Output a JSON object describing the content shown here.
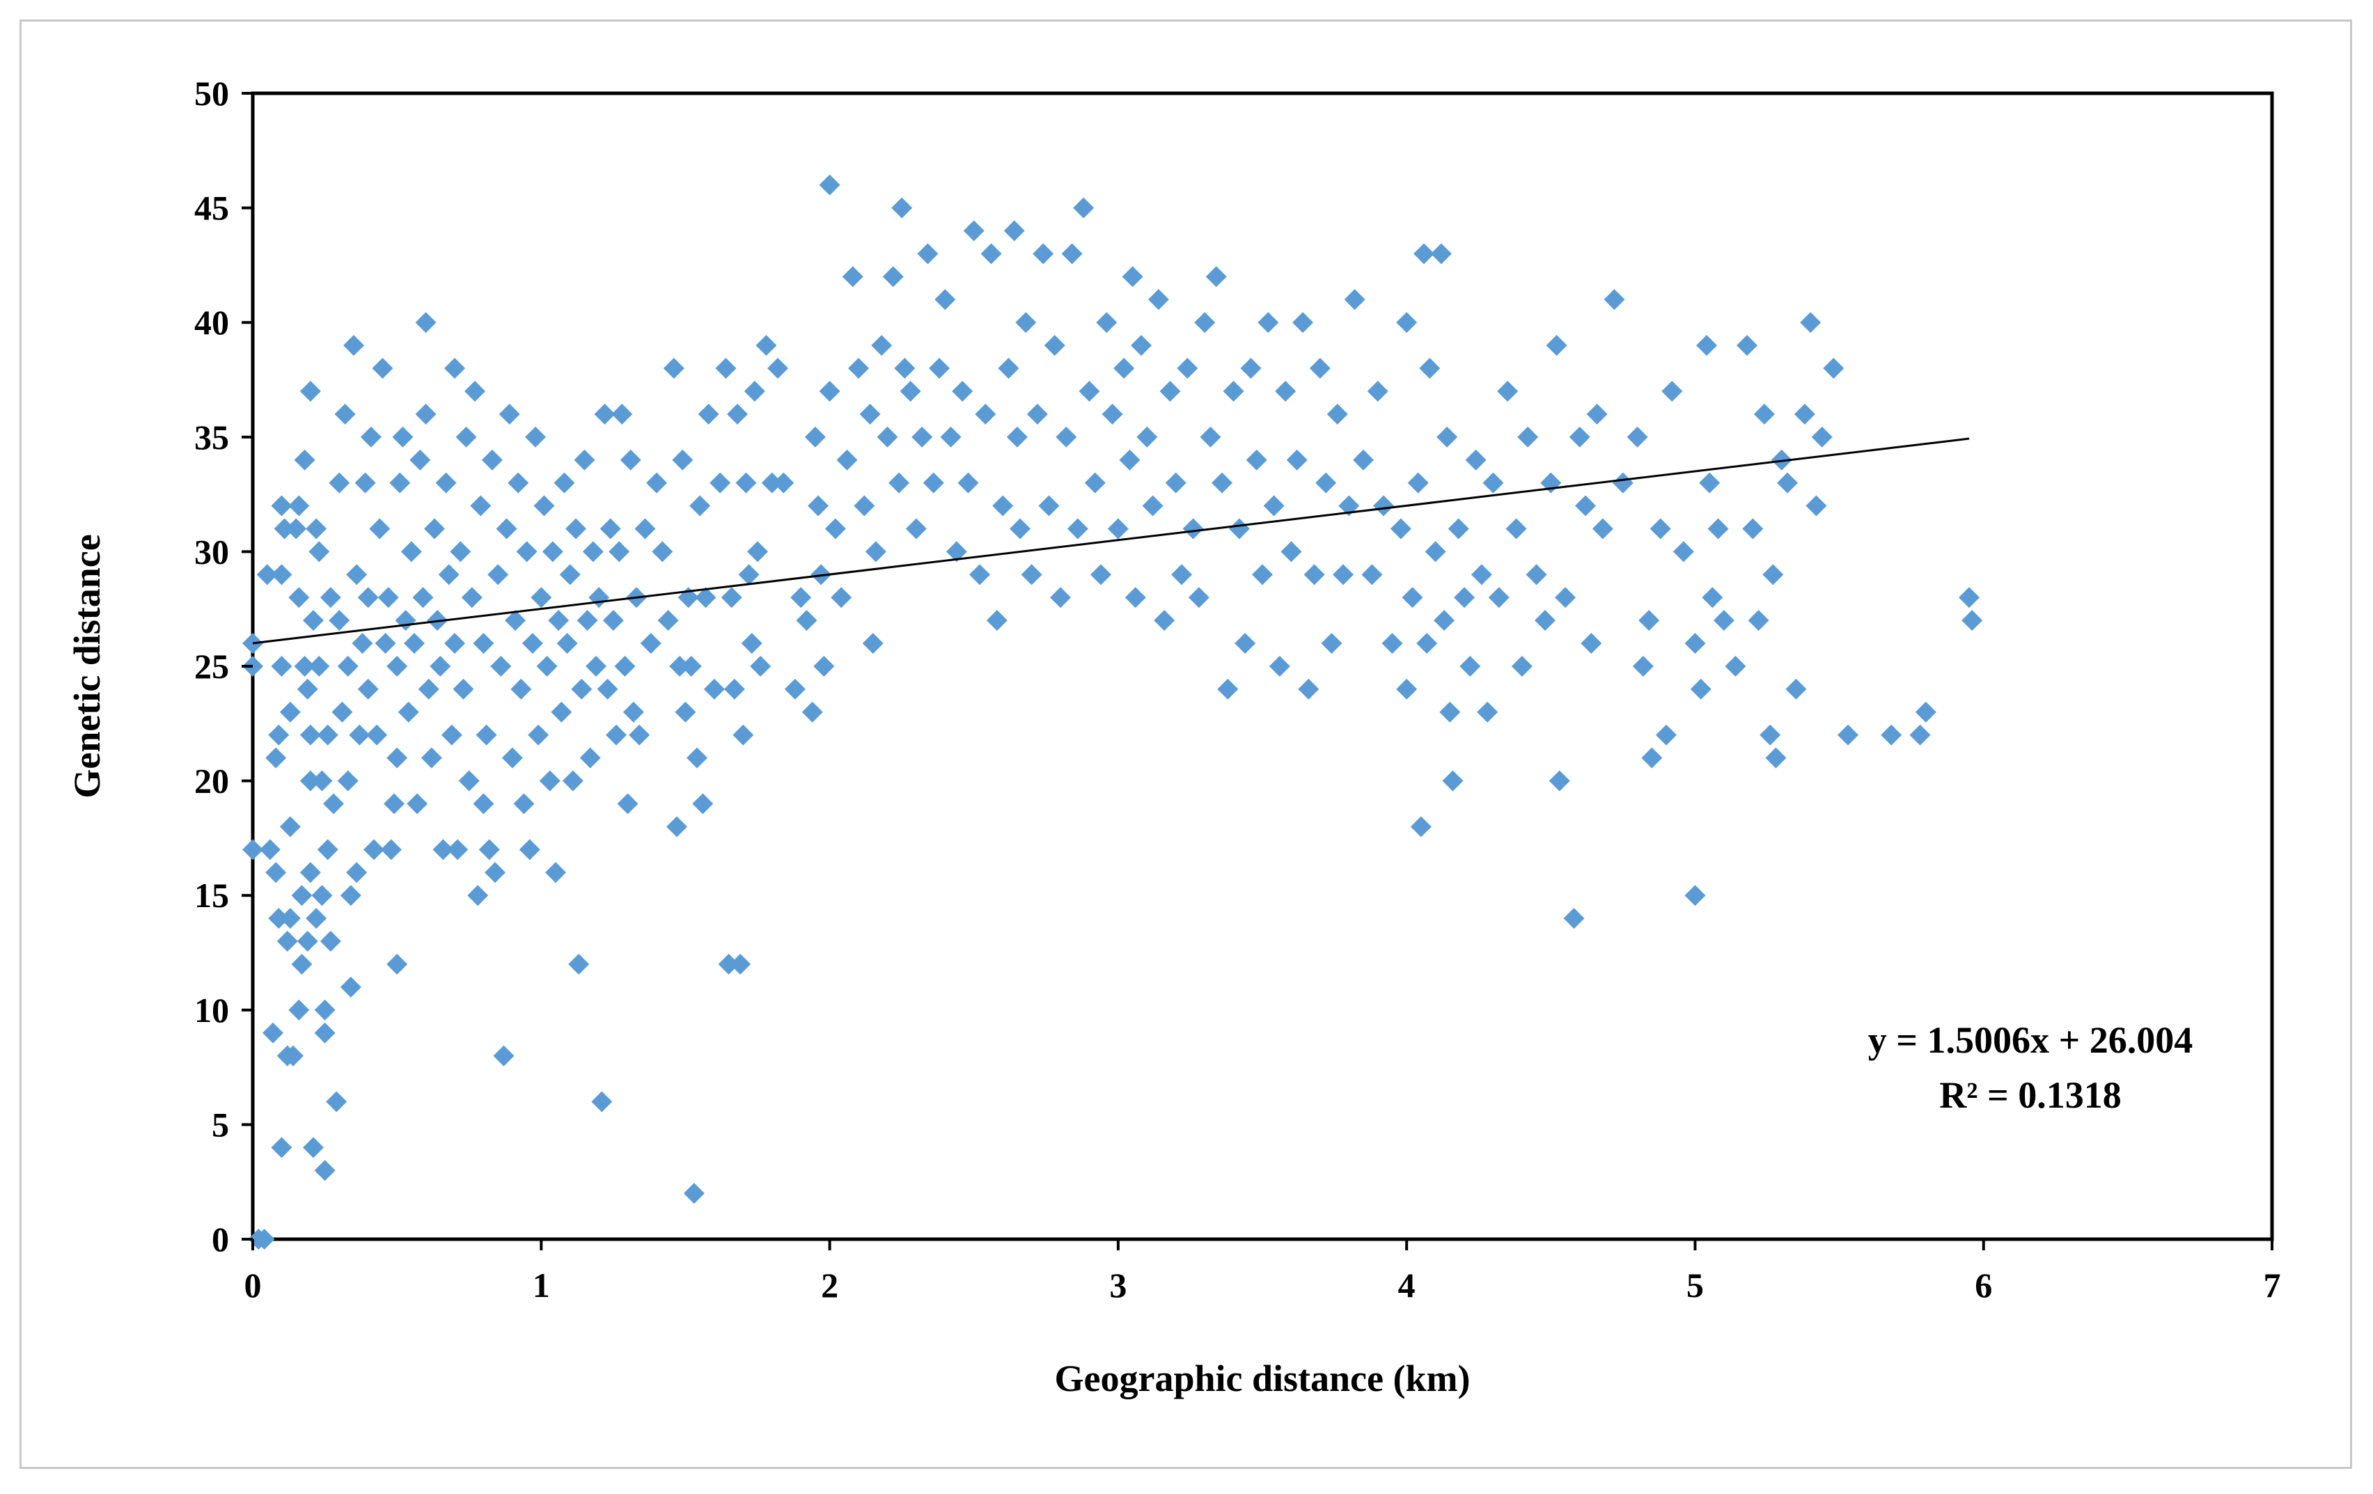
{
  "chart_data": {
    "type": "scatter",
    "xlabel": "Geographic distance (km)",
    "ylabel": "Genetic distance",
    "xlim": [
      0,
      7
    ],
    "ylim": [
      0,
      50
    ],
    "x_ticks": [
      "0",
      "1",
      "2",
      "3",
      "4",
      "5",
      "6",
      "7"
    ],
    "y_ticks": [
      "0",
      "5",
      "10",
      "15",
      "20",
      "25",
      "30",
      "35",
      "40",
      "45",
      "50"
    ],
    "grid": false,
    "legend": "none",
    "marker": "diamond",
    "marker_color": "#5b9bd5",
    "trendline": {
      "slope": 1.5006,
      "intercept": 26.004,
      "x_range": [
        0,
        5.95
      ],
      "color": "#000000"
    },
    "annotations": {
      "equation": "y = 1.5006x + 26.004",
      "r_squared": "R² = 0.1318"
    },
    "points": [
      [
        0.0,
        25
      ],
      [
        0.0,
        26
      ],
      [
        0.0,
        17
      ],
      [
        0.02,
        0
      ],
      [
        0.04,
        0
      ],
      [
        0.05,
        29
      ],
      [
        0.06,
        17
      ],
      [
        0.07,
        9
      ],
      [
        0.08,
        16
      ],
      [
        0.08,
        21
      ],
      [
        0.09,
        14
      ],
      [
        0.09,
        22
      ],
      [
        0.1,
        4
      ],
      [
        0.1,
        25
      ],
      [
        0.1,
        29
      ],
      [
        0.1,
        32
      ],
      [
        0.11,
        31
      ],
      [
        0.12,
        13
      ],
      [
        0.12,
        8
      ],
      [
        0.13,
        14
      ],
      [
        0.13,
        18
      ],
      [
        0.13,
        23
      ],
      [
        0.14,
        8
      ],
      [
        0.15,
        31
      ],
      [
        0.16,
        10
      ],
      [
        0.16,
        28
      ],
      [
        0.16,
        32
      ],
      [
        0.17,
        12
      ],
      [
        0.17,
        15
      ],
      [
        0.18,
        25
      ],
      [
        0.18,
        34
      ],
      [
        0.19,
        13
      ],
      [
        0.19,
        24
      ],
      [
        0.2,
        16
      ],
      [
        0.2,
        20
      ],
      [
        0.2,
        22
      ],
      [
        0.2,
        37
      ],
      [
        0.21,
        4
      ],
      [
        0.21,
        27
      ],
      [
        0.22,
        14
      ],
      [
        0.22,
        31
      ],
      [
        0.23,
        25
      ],
      [
        0.23,
        30
      ],
      [
        0.24,
        15
      ],
      [
        0.24,
        20
      ],
      [
        0.25,
        10
      ],
      [
        0.25,
        3
      ],
      [
        0.25,
        9
      ],
      [
        0.26,
        17
      ],
      [
        0.26,
        22
      ],
      [
        0.27,
        13
      ],
      [
        0.27,
        28
      ],
      [
        0.28,
        19
      ],
      [
        0.29,
        6
      ],
      [
        0.3,
        27
      ],
      [
        0.3,
        33
      ],
      [
        0.31,
        23
      ],
      [
        0.32,
        36
      ],
      [
        0.33,
        20
      ],
      [
        0.33,
        25
      ],
      [
        0.34,
        15
      ],
      [
        0.34,
        11
      ],
      [
        0.35,
        39
      ],
      [
        0.36,
        16
      ],
      [
        0.36,
        29
      ],
      [
        0.37,
        22
      ],
      [
        0.38,
        26
      ],
      [
        0.39,
        33
      ],
      [
        0.4,
        24
      ],
      [
        0.4,
        28
      ],
      [
        0.41,
        35
      ],
      [
        0.42,
        17
      ],
      [
        0.43,
        22
      ],
      [
        0.44,
        31
      ],
      [
        0.45,
        38
      ],
      [
        0.46,
        26
      ],
      [
        0.47,
        28
      ],
      [
        0.48,
        17
      ],
      [
        0.49,
        19
      ],
      [
        0.5,
        12
      ],
      [
        0.5,
        21
      ],
      [
        0.5,
        25
      ],
      [
        0.51,
        33
      ],
      [
        0.52,
        35
      ],
      [
        0.53,
        27
      ],
      [
        0.54,
        23
      ],
      [
        0.55,
        30
      ],
      [
        0.56,
        26
      ],
      [
        0.57,
        19
      ],
      [
        0.58,
        34
      ],
      [
        0.59,
        28
      ],
      [
        0.6,
        36
      ],
      [
        0.6,
        40
      ],
      [
        0.61,
        24
      ],
      [
        0.62,
        21
      ],
      [
        0.63,
        31
      ],
      [
        0.64,
        27
      ],
      [
        0.65,
        25
      ],
      [
        0.66,
        17
      ],
      [
        0.67,
        33
      ],
      [
        0.68,
        29
      ],
      [
        0.69,
        22
      ],
      [
        0.7,
        38
      ],
      [
        0.7,
        26
      ],
      [
        0.71,
        17
      ],
      [
        0.72,
        30
      ],
      [
        0.73,
        24
      ],
      [
        0.74,
        35
      ],
      [
        0.75,
        20
      ],
      [
        0.76,
        28
      ],
      [
        0.77,
        37
      ],
      [
        0.78,
        15
      ],
      [
        0.79,
        32
      ],
      [
        0.8,
        19
      ],
      [
        0.8,
        26
      ],
      [
        0.81,
        22
      ],
      [
        0.82,
        17
      ],
      [
        0.83,
        34
      ],
      [
        0.84,
        16
      ],
      [
        0.85,
        29
      ],
      [
        0.86,
        25
      ],
      [
        0.87,
        8
      ],
      [
        0.88,
        31
      ],
      [
        0.89,
        36
      ],
      [
        0.9,
        21
      ],
      [
        0.91,
        27
      ],
      [
        0.92,
        33
      ],
      [
        0.93,
        24
      ],
      [
        0.94,
        19
      ],
      [
        0.95,
        30
      ],
      [
        0.96,
        17
      ],
      [
        0.97,
        26
      ],
      [
        0.98,
        35
      ],
      [
        0.99,
        22
      ],
      [
        1.0,
        28
      ],
      [
        1.01,
        32
      ],
      [
        1.02,
        25
      ],
      [
        1.03,
        20
      ],
      [
        1.04,
        30
      ],
      [
        1.05,
        16
      ],
      [
        1.06,
        27
      ],
      [
        1.07,
        23
      ],
      [
        1.08,
        33
      ],
      [
        1.09,
        26
      ],
      [
        1.1,
        29
      ],
      [
        1.11,
        20
      ],
      [
        1.12,
        31
      ],
      [
        1.13,
        12
      ],
      [
        1.14,
        24
      ],
      [
        1.15,
        34
      ],
      [
        1.16,
        27
      ],
      [
        1.17,
        21
      ],
      [
        1.18,
        30
      ],
      [
        1.19,
        25
      ],
      [
        1.2,
        28
      ],
      [
        1.21,
        6
      ],
      [
        1.22,
        36
      ],
      [
        1.23,
        24
      ],
      [
        1.24,
        31
      ],
      [
        1.25,
        27
      ],
      [
        1.26,
        22
      ],
      [
        1.27,
        30
      ],
      [
        1.28,
        36
      ],
      [
        1.29,
        25
      ],
      [
        1.3,
        19
      ],
      [
        1.31,
        34
      ],
      [
        1.32,
        23
      ],
      [
        1.33,
        28
      ],
      [
        1.34,
        22
      ],
      [
        1.36,
        31
      ],
      [
        1.38,
        26
      ],
      [
        1.4,
        33
      ],
      [
        1.42,
        30
      ],
      [
        1.44,
        27
      ],
      [
        1.46,
        38
      ],
      [
        1.47,
        18
      ],
      [
        1.48,
        25
      ],
      [
        1.49,
        34
      ],
      [
        1.5,
        23
      ],
      [
        1.51,
        28
      ],
      [
        1.52,
        25
      ],
      [
        1.53,
        2
      ],
      [
        1.54,
        21
      ],
      [
        1.55,
        32
      ],
      [
        1.56,
        19
      ],
      [
        1.57,
        28
      ],
      [
        1.58,
        36
      ],
      [
        1.6,
        24
      ],
      [
        1.62,
        33
      ],
      [
        1.64,
        38
      ],
      [
        1.65,
        12
      ],
      [
        1.66,
        28
      ],
      [
        1.67,
        24
      ],
      [
        1.68,
        36
      ],
      [
        1.69,
        12
      ],
      [
        1.7,
        22
      ],
      [
        1.71,
        33
      ],
      [
        1.72,
        29
      ],
      [
        1.73,
        26
      ],
      [
        1.74,
        37
      ],
      [
        1.75,
        30
      ],
      [
        1.76,
        25
      ],
      [
        1.78,
        39
      ],
      [
        1.8,
        33
      ],
      [
        1.82,
        38
      ],
      [
        1.84,
        33
      ],
      [
        1.88,
        24
      ],
      [
        1.9,
        28
      ],
      [
        1.92,
        27
      ],
      [
        1.94,
        23
      ],
      [
        1.95,
        35
      ],
      [
        1.96,
        32
      ],
      [
        1.97,
        29
      ],
      [
        1.98,
        25
      ],
      [
        2.0,
        46
      ],
      [
        2.0,
        37
      ],
      [
        2.02,
        31
      ],
      [
        2.04,
        28
      ],
      [
        2.06,
        34
      ],
      [
        2.08,
        42
      ],
      [
        2.1,
        38
      ],
      [
        2.12,
        32
      ],
      [
        2.14,
        36
      ],
      [
        2.15,
        26
      ],
      [
        2.16,
        30
      ],
      [
        2.18,
        39
      ],
      [
        2.2,
        35
      ],
      [
        2.22,
        42
      ],
      [
        2.24,
        33
      ],
      [
        2.25,
        45
      ],
      [
        2.26,
        38
      ],
      [
        2.28,
        37
      ],
      [
        2.3,
        31
      ],
      [
        2.32,
        35
      ],
      [
        2.34,
        43
      ],
      [
        2.36,
        33
      ],
      [
        2.38,
        38
      ],
      [
        2.4,
        41
      ],
      [
        2.42,
        35
      ],
      [
        2.44,
        30
      ],
      [
        2.46,
        37
      ],
      [
        2.48,
        33
      ],
      [
        2.5,
        44
      ],
      [
        2.52,
        29
      ],
      [
        2.54,
        36
      ],
      [
        2.56,
        43
      ],
      [
        2.58,
        27
      ],
      [
        2.6,
        32
      ],
      [
        2.62,
        38
      ],
      [
        2.64,
        44
      ],
      [
        2.65,
        35
      ],
      [
        2.66,
        31
      ],
      [
        2.68,
        40
      ],
      [
        2.7,
        29
      ],
      [
        2.72,
        36
      ],
      [
        2.74,
        43
      ],
      [
        2.76,
        32
      ],
      [
        2.78,
        39
      ],
      [
        2.8,
        28
      ],
      [
        2.82,
        35
      ],
      [
        2.84,
        43
      ],
      [
        2.86,
        31
      ],
      [
        2.88,
        45
      ],
      [
        2.9,
        37
      ],
      [
        2.92,
        33
      ],
      [
        2.94,
        29
      ],
      [
        2.96,
        40
      ],
      [
        2.98,
        36
      ],
      [
        3.0,
        31
      ],
      [
        3.02,
        38
      ],
      [
        3.04,
        34
      ],
      [
        3.05,
        42
      ],
      [
        3.06,
        28
      ],
      [
        3.08,
        39
      ],
      [
        3.1,
        35
      ],
      [
        3.12,
        32
      ],
      [
        3.14,
        41
      ],
      [
        3.16,
        27
      ],
      [
        3.18,
        37
      ],
      [
        3.2,
        33
      ],
      [
        3.22,
        29
      ],
      [
        3.24,
        38
      ],
      [
        3.26,
        31
      ],
      [
        3.28,
        28
      ],
      [
        3.3,
        40
      ],
      [
        3.32,
        35
      ],
      [
        3.34,
        42
      ],
      [
        3.36,
        33
      ],
      [
        3.38,
        24
      ],
      [
        3.4,
        37
      ],
      [
        3.42,
        31
      ],
      [
        3.44,
        26
      ],
      [
        3.46,
        38
      ],
      [
        3.48,
        34
      ],
      [
        3.5,
        29
      ],
      [
        3.52,
        40
      ],
      [
        3.54,
        32
      ],
      [
        3.56,
        25
      ],
      [
        3.58,
        37
      ],
      [
        3.6,
        30
      ],
      [
        3.62,
        34
      ],
      [
        3.64,
        40
      ],
      [
        3.66,
        24
      ],
      [
        3.68,
        29
      ],
      [
        3.7,
        38
      ],
      [
        3.72,
        33
      ],
      [
        3.74,
        26
      ],
      [
        3.76,
        36
      ],
      [
        3.78,
        29
      ],
      [
        3.8,
        32
      ],
      [
        3.82,
        41
      ],
      [
        3.85,
        34
      ],
      [
        3.88,
        29
      ],
      [
        3.9,
        37
      ],
      [
        3.92,
        32
      ],
      [
        3.95,
        26
      ],
      [
        3.98,
        31
      ],
      [
        4.0,
        40
      ],
      [
        4.0,
        24
      ],
      [
        4.02,
        28
      ],
      [
        4.04,
        33
      ],
      [
        4.05,
        18
      ],
      [
        4.06,
        43
      ],
      [
        4.07,
        26
      ],
      [
        4.08,
        38
      ],
      [
        4.1,
        30
      ],
      [
        4.12,
        43
      ],
      [
        4.13,
        27
      ],
      [
        4.14,
        35
      ],
      [
        4.15,
        23
      ],
      [
        4.16,
        20
      ],
      [
        4.18,
        31
      ],
      [
        4.2,
        28
      ],
      [
        4.22,
        25
      ],
      [
        4.24,
        34
      ],
      [
        4.26,
        29
      ],
      [
        4.28,
        23
      ],
      [
        4.3,
        33
      ],
      [
        4.32,
        28
      ],
      [
        4.35,
        37
      ],
      [
        4.38,
        31
      ],
      [
        4.4,
        25
      ],
      [
        4.42,
        35
      ],
      [
        4.45,
        29
      ],
      [
        4.48,
        27
      ],
      [
        4.5,
        33
      ],
      [
        4.52,
        39
      ],
      [
        4.53,
        20
      ],
      [
        4.55,
        28
      ],
      [
        4.58,
        14
      ],
      [
        4.6,
        35
      ],
      [
        4.62,
        32
      ],
      [
        4.64,
        26
      ],
      [
        4.66,
        36
      ],
      [
        4.68,
        31
      ],
      [
        4.72,
        41
      ],
      [
        4.75,
        33
      ],
      [
        4.8,
        35
      ],
      [
        4.82,
        25
      ],
      [
        4.84,
        27
      ],
      [
        4.85,
        21
      ],
      [
        4.88,
        31
      ],
      [
        4.9,
        22
      ],
      [
        4.92,
        37
      ],
      [
        4.96,
        30
      ],
      [
        5.0,
        26
      ],
      [
        5.0,
        15
      ],
      [
        5.02,
        24
      ],
      [
        5.04,
        39
      ],
      [
        5.05,
        33
      ],
      [
        5.06,
        28
      ],
      [
        5.08,
        31
      ],
      [
        5.1,
        27
      ],
      [
        5.14,
        25
      ],
      [
        5.18,
        39
      ],
      [
        5.2,
        31
      ],
      [
        5.22,
        27
      ],
      [
        5.24,
        36
      ],
      [
        5.26,
        22
      ],
      [
        5.27,
        29
      ],
      [
        5.28,
        21
      ],
      [
        5.3,
        34
      ],
      [
        5.32,
        33
      ],
      [
        5.35,
        24
      ],
      [
        5.38,
        36
      ],
      [
        5.4,
        40
      ],
      [
        5.42,
        32
      ],
      [
        5.44,
        35
      ],
      [
        5.48,
        38
      ],
      [
        5.53,
        22
      ],
      [
        5.68,
        22
      ],
      [
        5.78,
        22
      ],
      [
        5.8,
        23
      ],
      [
        5.95,
        28
      ],
      [
        5.96,
        27
      ]
    ]
  }
}
